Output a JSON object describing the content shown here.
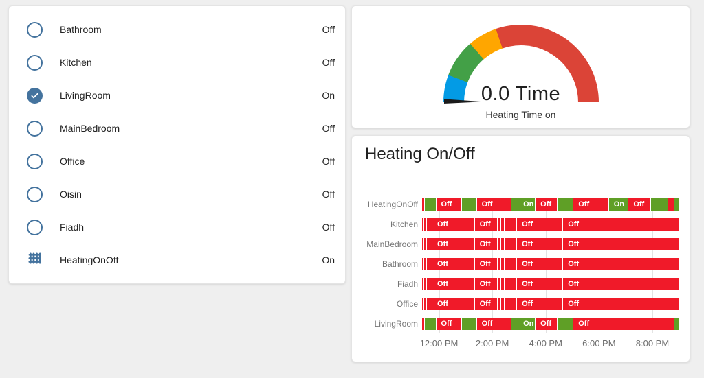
{
  "colors": {
    "entity_icon": "#44739e",
    "timeline_on": "#5f9f26",
    "timeline_off": "#f01a29",
    "gauge_severity_normal": "#039be5",
    "gauge_severity_green": "#43a047",
    "gauge_severity_amber": "#ffa600",
    "gauge_severity_red": "#db4437",
    "gauge_needle": "#1b1b1b"
  },
  "entity_list": {
    "items": [
      {
        "icon": "radio-button-unchecked",
        "label": "Bathroom",
        "state": "Off"
      },
      {
        "icon": "radio-button-unchecked",
        "label": "Kitchen",
        "state": "Off"
      },
      {
        "icon": "checkbox-marked-circle",
        "label": "LivingRoom",
        "state": "On"
      },
      {
        "icon": "radio-button-unchecked",
        "label": "MainBedroom",
        "state": "Off"
      },
      {
        "icon": "radio-button-unchecked",
        "label": "Office",
        "state": "Off"
      },
      {
        "icon": "radio-button-unchecked",
        "label": "Oisin",
        "state": "Off"
      },
      {
        "icon": "radio-button-unchecked",
        "label": "Fiadh",
        "state": "Off"
      },
      {
        "icon": "radiator",
        "label": "HeatingOnOff",
        "state": "On"
      }
    ]
  },
  "gauge": {
    "value_text": "0.0 Time",
    "title": "Heating Time on",
    "needle_angle_deg": 0,
    "segments": [
      {
        "color_key": "gauge_severity_normal",
        "from_deg": 0,
        "to_deg": 20.5
      },
      {
        "color_key": "gauge_severity_green",
        "from_deg": 20.5,
        "to_deg": 49
      },
      {
        "color_key": "gauge_severity_amber",
        "from_deg": 49,
        "to_deg": 71
      },
      {
        "color_key": "gauge_severity_red",
        "from_deg": 71,
        "to_deg": 180
      }
    ]
  },
  "chart_data": {
    "type": "state-timeline",
    "title": "Heating On/Off",
    "state_labels": {
      "on": "On",
      "off": "Off"
    },
    "x_ticks": [
      {
        "label": "12:00 PM",
        "pos_pct": 6.58
      },
      {
        "label": "2:00 PM",
        "pos_pct": 27.38
      },
      {
        "label": "4:00 PM",
        "pos_pct": 48.19
      },
      {
        "label": "6:00 PM",
        "pos_pct": 68.99
      },
      {
        "label": "8:00 PM",
        "pos_pct": 89.8
      }
    ],
    "rows": [
      {
        "name": "HeatingOnOff",
        "segments": [
          [
            1.07,
            "off",
            ""
          ],
          [
            4.43,
            "on",
            ""
          ],
          [
            10.07,
            "off",
            "Off"
          ],
          [
            5.77,
            "on",
            ""
          ],
          [
            13.42,
            "off",
            "Off"
          ],
          [
            2.82,
            "on",
            ""
          ],
          [
            6.71,
            "on",
            "On"
          ],
          [
            8.46,
            "off",
            "Off"
          ],
          [
            6.31,
            "on",
            ""
          ],
          [
            13.83,
            "off",
            "Off"
          ],
          [
            7.65,
            "on",
            "On"
          ],
          [
            8.86,
            "off",
            "Off"
          ],
          [
            6.71,
            "on",
            ""
          ],
          [
            2.28,
            "off",
            ""
          ],
          [
            1.61,
            "on",
            ""
          ]
        ]
      },
      {
        "name": "Kitchen",
        "segments": [
          [
            0.81,
            "off",
            ""
          ],
          [
            1.07,
            "off",
            ""
          ],
          [
            2.15,
            "off",
            ""
          ],
          [
            16.51,
            "off",
            "Off"
          ],
          [
            8.99,
            "off",
            "Off"
          ],
          [
            1.34,
            "off",
            ""
          ],
          [
            1.34,
            "off",
            ""
          ],
          [
            4.83,
            "off",
            ""
          ],
          [
            17.99,
            "off",
            "Off"
          ],
          [
            44.97,
            "off",
            "Off"
          ]
        ]
      },
      {
        "name": "MainBedroom",
        "segments": [
          [
            0.81,
            "off",
            ""
          ],
          [
            1.07,
            "off",
            ""
          ],
          [
            2.15,
            "off",
            ""
          ],
          [
            16.51,
            "off",
            "Off"
          ],
          [
            8.99,
            "off",
            "Off"
          ],
          [
            1.34,
            "off",
            ""
          ],
          [
            1.34,
            "off",
            ""
          ],
          [
            4.83,
            "off",
            ""
          ],
          [
            17.99,
            "off",
            "Off"
          ],
          [
            44.97,
            "off",
            "Off"
          ]
        ]
      },
      {
        "name": "Bathroom",
        "segments": [
          [
            0.81,
            "off",
            ""
          ],
          [
            1.07,
            "off",
            ""
          ],
          [
            2.15,
            "off",
            ""
          ],
          [
            16.51,
            "off",
            "Off"
          ],
          [
            8.99,
            "off",
            "Off"
          ],
          [
            1.34,
            "off",
            ""
          ],
          [
            1.34,
            "off",
            ""
          ],
          [
            4.83,
            "off",
            ""
          ],
          [
            17.99,
            "off",
            "Off"
          ],
          [
            44.97,
            "off",
            "Off"
          ]
        ]
      },
      {
        "name": "Fiadh",
        "segments": [
          [
            0.81,
            "off",
            ""
          ],
          [
            1.07,
            "off",
            ""
          ],
          [
            2.15,
            "off",
            ""
          ],
          [
            16.51,
            "off",
            "Off"
          ],
          [
            8.99,
            "off",
            "Off"
          ],
          [
            1.34,
            "off",
            ""
          ],
          [
            1.34,
            "off",
            ""
          ],
          [
            4.83,
            "off",
            ""
          ],
          [
            17.99,
            "off",
            "Off"
          ],
          [
            44.97,
            "off",
            "Off"
          ]
        ]
      },
      {
        "name": "Office",
        "segments": [
          [
            0.81,
            "off",
            ""
          ],
          [
            1.07,
            "off",
            ""
          ],
          [
            2.15,
            "off",
            ""
          ],
          [
            16.51,
            "off",
            "Off"
          ],
          [
            8.99,
            "off",
            "Off"
          ],
          [
            1.34,
            "off",
            ""
          ],
          [
            1.34,
            "off",
            ""
          ],
          [
            4.83,
            "off",
            ""
          ],
          [
            17.99,
            "off",
            "Off"
          ],
          [
            44.97,
            "off",
            "Off"
          ]
        ]
      },
      {
        "name": "LivingRoom",
        "segments": [
          [
            1.07,
            "off",
            ""
          ],
          [
            4.43,
            "on",
            ""
          ],
          [
            10.07,
            "off",
            "Off"
          ],
          [
            5.77,
            "on",
            ""
          ],
          [
            13.42,
            "off",
            "Off"
          ],
          [
            2.82,
            "on",
            ""
          ],
          [
            6.71,
            "on",
            "On"
          ],
          [
            8.46,
            "off",
            "Off"
          ],
          [
            6.31,
            "on",
            ""
          ],
          [
            39.33,
            "off",
            "Off"
          ],
          [
            1.61,
            "on",
            ""
          ]
        ]
      }
    ]
  }
}
